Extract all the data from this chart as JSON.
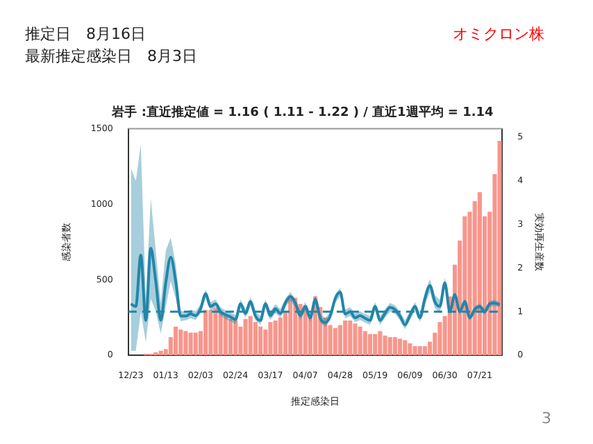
{
  "chart_data": {
    "type": "bar",
    "title": "岩手 :直近推定値 = 1.16 ( 1.11 - 1.22 ) / 直近1週平均 = 1.14",
    "xlabel": "推定感染日",
    "ylabel": "感染者数",
    "y2label": "実効再生産数",
    "annotations": [
      "推定日　8月16日",
      "最新推定感染日　8月3日",
      "オミクロン株",
      "3"
    ],
    "categories": [
      "12/23",
      null,
      null,
      null,
      null,
      null,
      null,
      "01/13",
      null,
      null,
      null,
      null,
      null,
      null,
      "02/03",
      null,
      null,
      null,
      null,
      null,
      null,
      "02/24",
      null,
      null,
      null,
      null,
      null,
      null,
      "03/17",
      null,
      null,
      null,
      null,
      null,
      null,
      "04/07",
      null,
      null,
      null,
      null,
      null,
      null,
      "04/28",
      null,
      null,
      null,
      null,
      null,
      null,
      "05/19",
      null,
      null,
      null,
      null,
      null,
      null,
      "06/09",
      null,
      null,
      null,
      null,
      null,
      null,
      "06/30",
      null,
      null,
      null,
      null,
      null,
      null,
      "07/21",
      null,
      null,
      null,
      null
    ],
    "series": [
      {
        "color": "#f7968c",
        "values": [
          0,
          0,
          0,
          10,
          10,
          20,
          30,
          40,
          120,
          190,
          170,
          160,
          150,
          150,
          160,
          300,
          300,
          310,
          290,
          260,
          240,
          230,
          190,
          240,
          260,
          220,
          190,
          170,
          220,
          230,
          250,
          290,
          390,
          380,
          340,
          330,
          270,
          390,
          320,
          250,
          200,
          180,
          200,
          230,
          230,
          210,
          190,
          160,
          140,
          140,
          160,
          130,
          120,
          120,
          110,
          100,
          80,
          60,
          60,
          60,
          90,
          150,
          220,
          260,
          390,
          600,
          760,
          920,
          950,
          1020,
          1080,
          920,
          950,
          1200,
          1420
        ]
      },
      {
        "type": "line",
        "axis": "y2",
        "color": "#2385a8",
        "values": [
          1.18,
          1.12,
          2.3,
          0.8,
          2.46,
          1.7,
          0.8,
          1.66,
          2.25,
          1.7,
          0.9,
          0.9,
          0.95,
          0.91,
          1.07,
          1.41,
          1.12,
          1.18,
          1.0,
          0.93,
          0.88,
          0.82,
          1.18,
          0.96,
          1.23,
          0.9,
          0.8,
          1.18,
          0.91,
          1.07,
          0.96,
          1.2,
          1.35,
          1.2,
          0.91,
          1.12,
          0.86,
          1.28,
          0.85,
          0.75,
          0.9,
          1.3,
          1.45,
          0.95,
          1.0,
          0.86,
          0.91,
          0.85,
          0.8,
          1.12,
          0.8,
          0.96,
          1.1,
          1.05,
          0.9,
          0.7,
          0.91,
          1.12,
          0.86,
          1.3,
          1.6,
          1.23,
          1.12,
          1.66,
          1.0,
          1.39,
          1.0,
          1.23,
          0.86,
          1.05,
          1.12,
          1.0,
          1.18,
          1.2,
          1.16
        ],
        "lower": [
          0.1,
          0.1,
          1.0,
          0.3,
          1.3,
          1.0,
          0.5,
          1.1,
          1.7,
          1.3,
          0.78,
          0.8,
          0.85,
          0.81,
          0.97,
          1.31,
          1.02,
          1.08,
          0.9,
          0.83,
          0.78,
          0.72,
          1.08,
          0.86,
          1.13,
          0.8,
          0.7,
          1.08,
          0.81,
          0.97,
          0.86,
          1.1,
          1.25,
          1.1,
          0.81,
          1.02,
          0.76,
          1.18,
          0.75,
          0.65,
          0.8,
          1.2,
          1.35,
          0.85,
          0.9,
          0.76,
          0.81,
          0.75,
          0.7,
          1.02,
          0.7,
          0.86,
          1.0,
          0.95,
          0.8,
          0.6,
          0.81,
          1.02,
          0.76,
          1.15,
          1.45,
          1.08,
          0.97,
          1.54,
          0.93,
          1.32,
          0.93,
          1.16,
          0.79,
          0.98,
          1.05,
          0.93,
          1.11,
          1.13,
          1.11
        ],
        "upper": [
          4.3,
          4.0,
          4.85,
          1.3,
          3.6,
          2.4,
          1.2,
          2.4,
          2.7,
          2.1,
          1.02,
          1.0,
          1.05,
          1.01,
          1.17,
          1.51,
          1.22,
          1.28,
          1.1,
          1.03,
          0.98,
          0.92,
          1.28,
          1.06,
          1.33,
          1.0,
          0.9,
          1.28,
          1.01,
          1.17,
          1.06,
          1.3,
          1.45,
          1.3,
          1.01,
          1.22,
          0.96,
          1.38,
          0.95,
          0.85,
          1.0,
          1.4,
          1.55,
          1.05,
          1.1,
          0.96,
          1.01,
          0.95,
          0.9,
          1.22,
          0.9,
          1.06,
          1.2,
          1.15,
          1.0,
          0.8,
          1.01,
          1.22,
          0.96,
          1.45,
          1.75,
          1.38,
          1.27,
          1.78,
          1.07,
          1.46,
          1.07,
          1.3,
          0.93,
          1.12,
          1.19,
          1.07,
          1.25,
          1.27,
          1.22
        ]
      }
    ],
    "ylim": [
      0,
      1500
    ],
    "yticks": [
      0,
      500,
      1000,
      1500
    ],
    "y2lim": [
      0,
      5.2
    ],
    "y2ticks": [
      0,
      1,
      2,
      3,
      4,
      5
    ],
    "ref_lines": [
      {
        "axis": "y2",
        "value": 1,
        "color": "#2385a8",
        "line_style": "dashed"
      }
    ],
    "grid": false,
    "legend": false
  }
}
